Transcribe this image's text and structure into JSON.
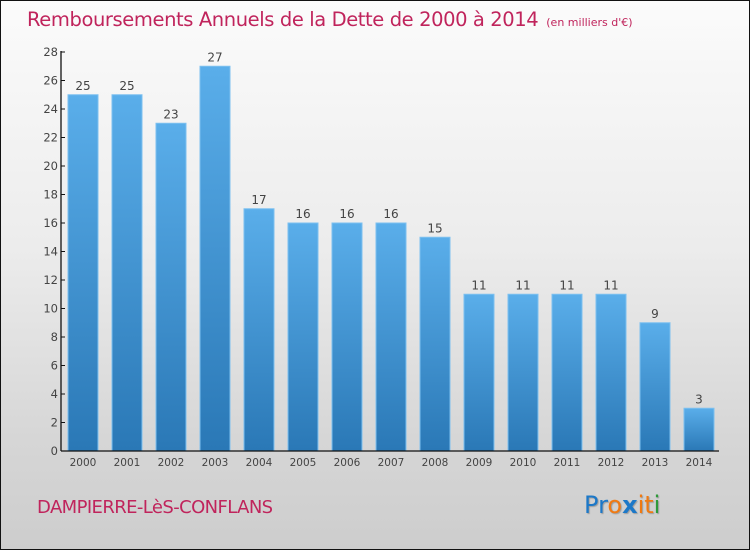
{
  "title": "Remboursements Annuels de la Dette de 2000 à 2014",
  "subtitle": "(en milliers d'€)",
  "town": "DAMPIERRE-LèS-CONFLANS",
  "logo": {
    "letters": [
      {
        "char": "P",
        "color": "#1c78c8"
      },
      {
        "char": "r",
        "color": "#1c78c8"
      },
      {
        "char": "o",
        "color": "#f07a12"
      },
      {
        "char": "x",
        "color": "#1c78c8"
      },
      {
        "char": "i",
        "color": "#f07a12"
      },
      {
        "char": "t",
        "color": "#f07a12"
      },
      {
        "char": "i",
        "color": "#2e9a3a"
      }
    ]
  },
  "colors": {
    "title": "#c0245c",
    "bar_top": "#5aaeea",
    "bar_bottom": "#2a78b6",
    "bar_edge": "#7cc0f0"
  },
  "chart_data": {
    "type": "bar",
    "title": "Remboursements Annuels de la Dette de 2000 à 2014",
    "subtitle": "(en milliers d'€)",
    "xlabel": "",
    "ylabel": "",
    "categories": [
      "2000",
      "2001",
      "2002",
      "2003",
      "2004",
      "2005",
      "2006",
      "2007",
      "2008",
      "2009",
      "2010",
      "2011",
      "2012",
      "2013",
      "2014"
    ],
    "values": [
      25,
      25,
      23,
      27,
      17,
      16,
      16,
      16,
      15,
      11,
      11,
      11,
      11,
      9,
      3
    ],
    "ylim": [
      0,
      28
    ],
    "yticks": [
      0,
      2,
      4,
      6,
      8,
      10,
      12,
      14,
      16,
      18,
      20,
      22,
      24,
      26,
      28
    ],
    "grid": false,
    "legend": "none",
    "data_labels": true
  }
}
